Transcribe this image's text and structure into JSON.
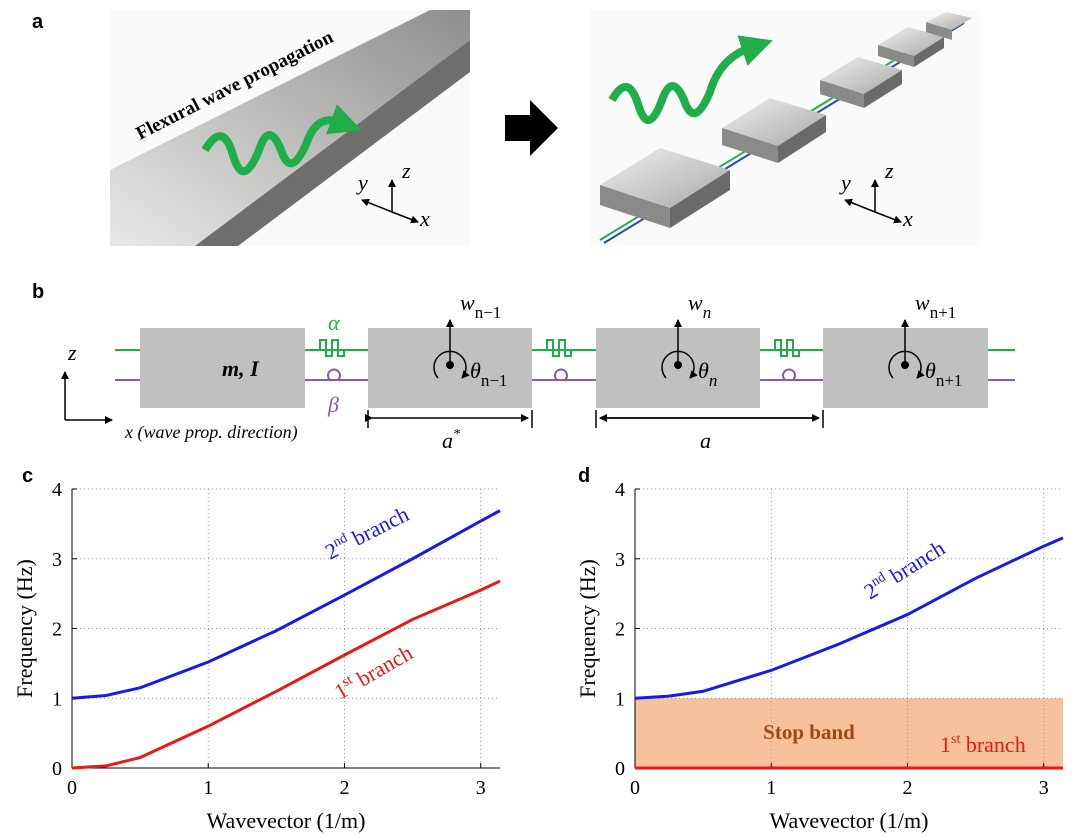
{
  "panels": {
    "a": {
      "label": "a",
      "caption": "Flexural wave propagation",
      "axes_left": {
        "y": "y",
        "z": "z",
        "x": "x"
      },
      "axes_right": {
        "y": "y",
        "z": "z",
        "x": "x"
      }
    },
    "b": {
      "label": "b",
      "z": "z",
      "x": "x (wave prop. direction)",
      "mass": "m, I",
      "alpha": "α",
      "beta": "β",
      "nodes": [
        {
          "w": "w",
          "w_sub": "n−1",
          "theta": "θ",
          "theta_sub": "n−1"
        },
        {
          "w": "w",
          "w_sub": "n",
          "theta": "θ",
          "theta_sub": "n"
        },
        {
          "w": "w",
          "w_sub": "n+1",
          "theta": "θ",
          "theta_sub": "n+1"
        }
      ],
      "spacing_star": "a",
      "spacing_star_sup": "*",
      "spacing": "a"
    }
  },
  "chart_data": [
    {
      "type": "line",
      "panel_label": "c",
      "xlabel": "Wavevector (1/m)",
      "ylabel": "Frequency (Hz)",
      "xlim": [
        0,
        3.1416
      ],
      "ylim": [
        0,
        4
      ],
      "xticks": [
        0,
        1,
        2,
        3
      ],
      "yticks": [
        0,
        1,
        2,
        3,
        4
      ],
      "grid": true,
      "x": [
        0,
        0.25,
        0.5,
        1,
        1.5,
        2,
        2.5,
        3,
        3.1416
      ],
      "series": [
        {
          "color": "#1a1ae6",
          "values": [
            1.0,
            1.04,
            1.15,
            1.52,
            1.97,
            2.48,
            3.0,
            3.54,
            3.69
          ]
        },
        {
          "color": "#e61a1a",
          "values": [
            0,
            0.03,
            0.15,
            0.6,
            1.1,
            1.62,
            2.13,
            2.55,
            2.68
          ]
        }
      ],
      "annotations": [
        {
          "text": "2",
          "sup": "nd",
          "rest": " branch",
          "color": "#1a1ae6"
        },
        {
          "text": "1",
          "sup": "st",
          "rest": " branch",
          "color": "#e61a1a"
        }
      ]
    },
    {
      "type": "line",
      "panel_label": "d",
      "xlabel": "Wavevector (1/m)",
      "ylabel": "Frequency (Hz)",
      "xlim": [
        0,
        3.1416
      ],
      "ylim": [
        0,
        4
      ],
      "xticks": [
        0,
        1,
        2,
        3
      ],
      "yticks": [
        0,
        1,
        2,
        3,
        4
      ],
      "grid": true,
      "x": [
        0,
        0.25,
        0.5,
        1,
        1.5,
        2,
        2.5,
        3,
        3.1416
      ],
      "series": [
        {
          "color": "#1a1ae6",
          "values": [
            1.0,
            1.03,
            1.1,
            1.4,
            1.78,
            2.2,
            2.72,
            3.18,
            3.3
          ]
        },
        {
          "color": "#e61a1a",
          "values": [
            0,
            0,
            0,
            0,
            0,
            0,
            0,
            0,
            0
          ]
        }
      ],
      "shaded_region": {
        "text": "Stop band",
        "from": 0,
        "to": 1,
        "color": "#f7c29b",
        "text_color": "#9a4a10"
      },
      "annotations": [
        {
          "text": "2",
          "sup": "nd",
          "rest": " branch",
          "color": "#1a1ae6"
        },
        {
          "text": "1",
          "sup": "st",
          "rest": " branch",
          "color": "#e61a1a"
        }
      ]
    }
  ]
}
